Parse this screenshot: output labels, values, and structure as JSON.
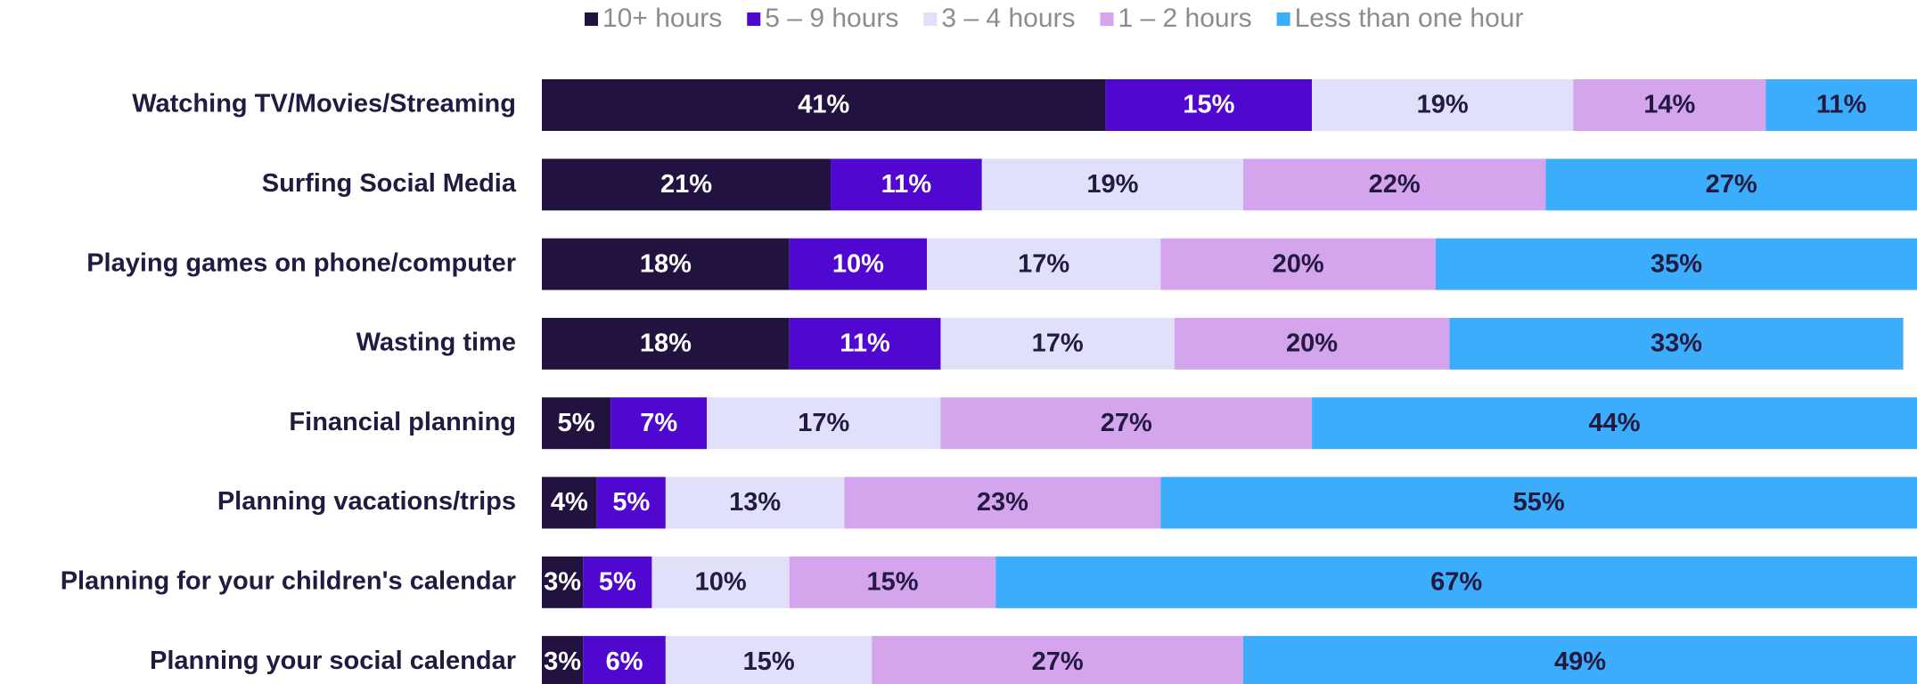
{
  "chart_data": {
    "type": "stacked-bar-horizontal",
    "categories": [
      "Watching TV/Movies/Streaming",
      "Surfing Social Media",
      "Playing games on phone/computer",
      "Wasting time",
      "Financial planning",
      "Planning vacations/trips",
      "Planning for your children's calendar",
      "Planning your social calendar"
    ],
    "xlim": [
      0,
      100
    ],
    "legend": "top",
    "series": [
      {
        "name": "10+ hours",
        "color": "#22123f",
        "label_color": "#ffffff",
        "values": [
          41,
          21,
          18,
          18,
          5,
          4,
          3,
          3
        ],
        "value_labels": [
          "41%",
          "21%",
          "18%",
          "18%",
          "5%",
          "4%",
          "3%",
          "3%"
        ]
      },
      {
        "name": "5 – 9 hours",
        "color": "#5007cf",
        "label_color": "#ffffff",
        "values": [
          15,
          11,
          10,
          11,
          7,
          5,
          5,
          6
        ],
        "value_labels": [
          "15%",
          "11%",
          "10%",
          "11%",
          "7%",
          "5%",
          "5%",
          "6%"
        ]
      },
      {
        "name": "3 – 4 hours",
        "color": "#e1e0fb",
        "label_color": "#221a40",
        "values": [
          19,
          19,
          17,
          17,
          17,
          13,
          10,
          15
        ],
        "value_labels": [
          "19%",
          "19%",
          "17%",
          "17%",
          "17%",
          "13%",
          "10%",
          "15%"
        ]
      },
      {
        "name": "1 – 2 hours",
        "color": "#d4a5ed",
        "label_color": "#221a40",
        "values": [
          14,
          22,
          20,
          20,
          27,
          23,
          15,
          27
        ],
        "value_labels": [
          "14%",
          "22%",
          "20%",
          "20%",
          "27%",
          "23%",
          "15%",
          "27%"
        ]
      },
      {
        "name": "Less than one hour",
        "color": "#3badfb",
        "label_color": "#221a40",
        "values": [
          11,
          27,
          35,
          33,
          44,
          55,
          67,
          49
        ],
        "value_labels": [
          "11%",
          "27%",
          "35%",
          "33%",
          "44%",
          "55%",
          "67%",
          "49%"
        ]
      }
    ]
  }
}
